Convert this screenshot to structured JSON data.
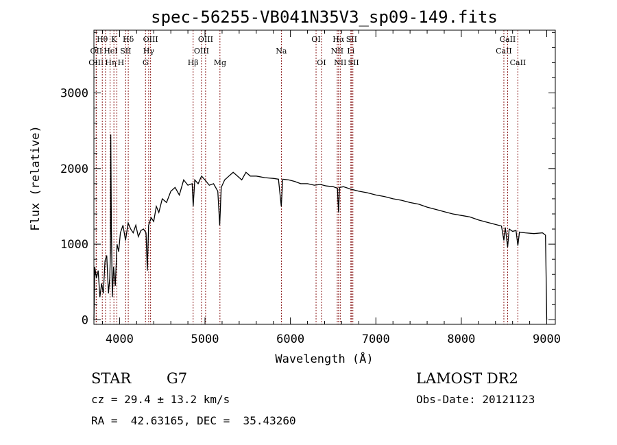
{
  "chart_data": {
    "type": "line",
    "title": "spec-56255-VB041N35V3_sp09-149.fits",
    "xlabel": "Wavelength (Å)",
    "ylabel": "Flux (relative)",
    "xlim": [
      3700,
      9100
    ],
    "ylim": [
      -60,
      3830
    ],
    "xticks": [
      4000,
      5000,
      6000,
      7000,
      8000,
      9000
    ],
    "yticks": [
      0,
      1000,
      2000,
      3000
    ],
    "grid": false,
    "series": [
      {
        "name": "flux",
        "x": [
          3700,
          3710,
          3730,
          3750,
          3770,
          3790,
          3810,
          3830,
          3850,
          3870,
          3885,
          3893,
          3897,
          3905,
          3915,
          3930,
          3950,
          3970,
          3990,
          4010,
          4040,
          4070,
          4100,
          4130,
          4160,
          4190,
          4220,
          4250,
          4280,
          4310,
          4325,
          4340,
          4370,
          4400,
          4430,
          4460,
          4500,
          4550,
          4600,
          4650,
          4700,
          4750,
          4800,
          4850,
          4862,
          4880,
          4920,
          4960,
          5000,
          5050,
          5100,
          5150,
          5172,
          5190,
          5230,
          5280,
          5330,
          5380,
          5430,
          5480,
          5530,
          5600,
          5700,
          5800,
          5860,
          5893,
          5910,
          5980,
          6050,
          6120,
          6200,
          6280,
          6350,
          6420,
          6500,
          6550,
          6563,
          6575,
          6620,
          6700,
          6800,
          6900,
          7000,
          7100,
          7200,
          7300,
          7400,
          7500,
          7600,
          7700,
          7800,
          7900,
          8000,
          8100,
          8200,
          8300,
          8400,
          8470,
          8498,
          8515,
          8542,
          8560,
          8600,
          8640,
          8662,
          8680,
          8750,
          8850,
          8950,
          8985,
          8995,
          9000
        ],
        "y": [
          0,
          700,
          550,
          650,
          300,
          480,
          350,
          780,
          850,
          350,
          550,
          900,
          2450,
          1200,
          300,
          700,
          450,
          1000,
          900,
          1150,
          1250,
          1050,
          1280,
          1200,
          1150,
          1250,
          1100,
          1180,
          1200,
          1150,
          650,
          1250,
          1350,
          1300,
          1500,
          1420,
          1600,
          1550,
          1700,
          1750,
          1650,
          1850,
          1780,
          1800,
          1500,
          1850,
          1800,
          1900,
          1850,
          1780,
          1800,
          1700,
          1250,
          1750,
          1850,
          1900,
          1950,
          1900,
          1850,
          1950,
          1900,
          1900,
          1880,
          1870,
          1860,
          1500,
          1860,
          1850,
          1830,
          1800,
          1800,
          1780,
          1790,
          1770,
          1760,
          1740,
          1420,
          1750,
          1760,
          1730,
          1700,
          1680,
          1650,
          1630,
          1600,
          1580,
          1550,
          1530,
          1490,
          1460,
          1430,
          1400,
          1380,
          1360,
          1320,
          1290,
          1260,
          1240,
          1050,
          1220,
          960,
          1200,
          1170,
          1180,
          980,
          1160,
          1150,
          1140,
          1150,
          1120,
          400,
          0
        ]
      }
    ],
    "lines": [
      {
        "wl": 3727,
        "label": "OII",
        "row": 2
      },
      {
        "wl": 3727,
        "label": "OIII",
        "row": 3
      },
      {
        "wl": 3798,
        "label": "Hθ",
        "row": 1
      },
      {
        "wl": 3836,
        "label": "Hη",
        "row": 3
      },
      {
        "wl": 3889,
        "label": "HeI",
        "row": 2
      },
      {
        "wl": 3934,
        "label": "K",
        "row": 1
      },
      {
        "wl": 3969,
        "label": "H",
        "row": 3
      },
      {
        "wl": 4072,
        "label": "SII",
        "row": 2
      },
      {
        "wl": 4102,
        "label": "Hδ",
        "row": 1
      },
      {
        "wl": 4304,
        "label": "G",
        "row": 3
      },
      {
        "wl": 4341,
        "label": "Hγ",
        "row": 2
      },
      {
        "wl": 4363,
        "label": "OIII",
        "row": 1
      },
      {
        "wl": 4861,
        "label": "Hβ",
        "row": 3
      },
      {
        "wl": 4959,
        "label": "OIII",
        "row": 2
      },
      {
        "wl": 5007,
        "label": "OIII",
        "row": 1
      },
      {
        "wl": 5175,
        "label": "Mg",
        "row": 3
      },
      {
        "wl": 5894,
        "label": "Na",
        "row": 2
      },
      {
        "wl": 6300,
        "label": "OI",
        "row": 1
      },
      {
        "wl": 6364,
        "label": "OI",
        "row": 3
      },
      {
        "wl": 6548,
        "label": "NII",
        "row": 2
      },
      {
        "wl": 6563,
        "label": "Hα",
        "row": 1
      },
      {
        "wl": 6583,
        "label": "NII",
        "row": 3
      },
      {
        "wl": 6707,
        "label": "Li",
        "row": 2
      },
      {
        "wl": 6716,
        "label": "SII",
        "row": 1
      },
      {
        "wl": 6731,
        "label": "SII",
        "row": 3
      },
      {
        "wl": 8498,
        "label": "CaII",
        "row": 2
      },
      {
        "wl": 8542,
        "label": "CaII",
        "row": 1
      },
      {
        "wl": 8662,
        "label": "CaII",
        "row": 3
      }
    ],
    "line_color": "#8b1a1a"
  },
  "info": {
    "object_class": "STAR",
    "subclass": "G7",
    "cz": "cz = 29.4 ± 13.2 km/s",
    "coords": "RA =  42.63165, DEC =  35.43260",
    "survey": "LAMOST DR2",
    "obs_date": "Obs-Date: 20121123"
  }
}
